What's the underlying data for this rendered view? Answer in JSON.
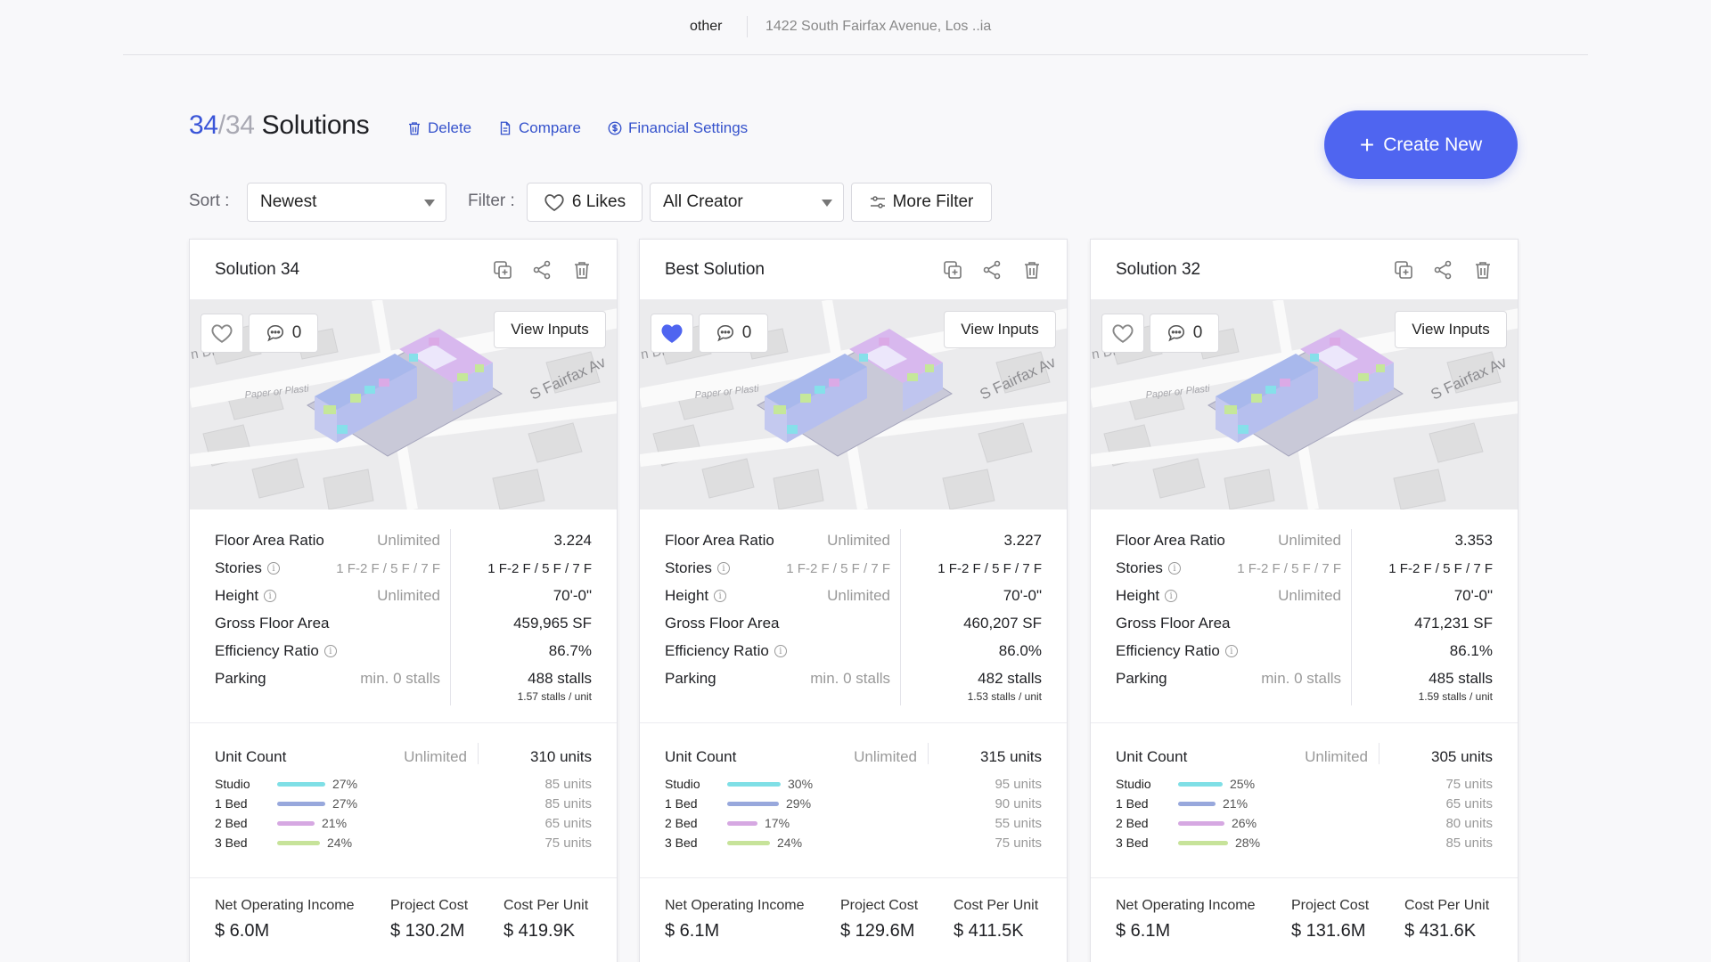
{
  "topbar": {
    "project": "other",
    "address": "1422 South Fairfax Avenue, Los ..ia"
  },
  "header": {
    "count_current": "34",
    "count_slash": "/",
    "count_total": "34",
    "count_word": "Solutions",
    "delete_label": "Delete",
    "compare_label": "Compare",
    "financial_label": "Financial Settings",
    "create_label": "Create New",
    "accent_color": "#4f65f0"
  },
  "toolbar": {
    "sort_label": "Sort :",
    "sort_value": "Newest",
    "filter_label": "Filter :",
    "likes_label": "6 Likes",
    "creator_value": "All Creator",
    "more_filter_label": "More Filter"
  },
  "labels": {
    "view_inputs": "View Inputs",
    "far": "Floor Area Ratio",
    "stories": "Stories",
    "height": "Height",
    "gfa": "Gross Floor Area",
    "efficiency": "Efficiency Ratio",
    "parking": "Parking",
    "unit_count": "Unit Count",
    "studio": "Studio",
    "bed1": "1 Bed",
    "bed2": "2 Bed",
    "bed3": "3 Bed",
    "noi": "Net Operating Income",
    "project_cost": "Project Cost",
    "cost_per_unit": "Cost Per Unit",
    "map_street": "S Fairfax Av",
    "map_poi": "Paper or Plasti",
    "map_edge": "n Di"
  },
  "limits": {
    "far": "Unlimited",
    "stories": "1 F-2 F / 5 F / 7 F",
    "height": "Unlimited",
    "parking": "min. 0 stalls",
    "unit_count": "Unlimited"
  },
  "unit_colors": {
    "studio": "#7fdfe6",
    "bed1": "#98a8dc",
    "bed2": "#d6a8e2",
    "bed3": "#c7e39a"
  },
  "cards": [
    {
      "title": "Solution 34",
      "liked": false,
      "comments": "0",
      "far": "3.224",
      "stories": "1 F-2 F / 5 F / 7 F",
      "height": "70'-0\"",
      "gfa": "459,965 SF",
      "efficiency": "86.7%",
      "parking": "488 stalls",
      "parking_sub": "1.57 stalls / unit",
      "units_total": "310 units",
      "studio_pct": "27%",
      "studio_units": "85 units",
      "studio_frac": 0.27,
      "bed1_pct": "27%",
      "bed1_units": "85 units",
      "bed1_frac": 0.27,
      "bed2_pct": "21%",
      "bed2_units": "65 units",
      "bed2_frac": 0.21,
      "bed3_pct": "24%",
      "bed3_units": "75 units",
      "bed3_frac": 0.24,
      "noi": "$ 6.0M",
      "project_cost": "$ 130.2M",
      "cost_per_unit": "$ 419.9K"
    },
    {
      "title": "Best Solution",
      "liked": true,
      "comments": "0",
      "far": "3.227",
      "stories": "1 F-2 F / 5 F / 7 F",
      "height": "70'-0\"",
      "gfa": "460,207 SF",
      "efficiency": "86.0%",
      "parking": "482 stalls",
      "parking_sub": "1.53 stalls / unit",
      "units_total": "315 units",
      "studio_pct": "30%",
      "studio_units": "95 units",
      "studio_frac": 0.3,
      "bed1_pct": "29%",
      "bed1_units": "90 units",
      "bed1_frac": 0.29,
      "bed2_pct": "17%",
      "bed2_units": "55 units",
      "bed2_frac": 0.17,
      "bed3_pct": "24%",
      "bed3_units": "75 units",
      "bed3_frac": 0.24,
      "noi": "$ 6.1M",
      "project_cost": "$ 129.6M",
      "cost_per_unit": "$ 411.5K"
    },
    {
      "title": "Solution 32",
      "liked": false,
      "comments": "0",
      "far": "3.353",
      "stories": "1 F-2 F / 5 F / 7 F",
      "height": "70'-0\"",
      "gfa": "471,231 SF",
      "efficiency": "86.1%",
      "parking": "485 stalls",
      "parking_sub": "1.59 stalls / unit",
      "units_total": "305 units",
      "studio_pct": "25%",
      "studio_units": "75 units",
      "studio_frac": 0.25,
      "bed1_pct": "21%",
      "bed1_units": "65 units",
      "bed1_frac": 0.21,
      "bed2_pct": "26%",
      "bed2_units": "80 units",
      "bed2_frac": 0.26,
      "bed3_pct": "28%",
      "bed3_units": "85 units",
      "bed3_frac": 0.28,
      "noi": "$ 6.1M",
      "project_cost": "$ 131.6M",
      "cost_per_unit": "$ 431.6K"
    }
  ]
}
